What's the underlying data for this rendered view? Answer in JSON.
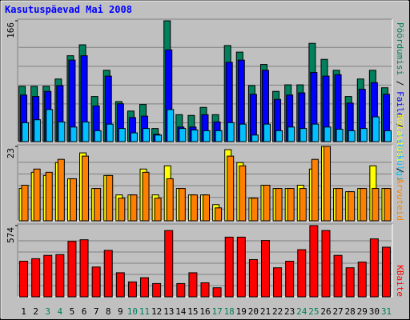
{
  "title": "Kasutuspäevad Mai 2008",
  "legend_separator": " / ",
  "categories": [
    "1",
    "2",
    "3",
    "4",
    "5",
    "6",
    "7",
    "8",
    "9",
    "10",
    "11",
    "12",
    "13",
    "14",
    "15",
    "16",
    "17",
    "18",
    "19",
    "20",
    "21",
    "22",
    "23",
    "24",
    "25",
    "26",
    "27",
    "28",
    "29",
    "30",
    "31"
  ],
  "category_colors": [
    "#000000",
    "#000000",
    "#00805c",
    "#00805c",
    "#000000",
    "#000000",
    "#000000",
    "#000000",
    "#000000",
    "#00805c",
    "#00805c",
    "#000000",
    "#000000",
    "#000000",
    "#000000",
    "#000000",
    "#00805c",
    "#00805c",
    "#000000",
    "#000000",
    "#000000",
    "#000000",
    "#000000",
    "#00805c",
    "#00805c",
    "#000000",
    "#000000",
    "#000000",
    "#000000",
    "#000000",
    "#00805c"
  ],
  "chart_data": [
    {
      "type": "bar",
      "ylim": [
        0,
        166
      ],
      "yticks": [
        166
      ],
      "series": [
        {
          "name": "Pöördumisi",
          "color": "#00805c",
          "values": [
            76,
            76,
            76,
            86,
            118,
            133,
            62,
            98,
            55,
            42,
            51,
            18,
            166,
            37,
            36,
            47,
            37,
            132,
            123,
            77,
            106,
            69,
            78,
            78,
            135,
            113,
            98,
            62,
            86,
            98,
            74
          ]
        },
        {
          "name": "Faile",
          "color": "#0000ff",
          "values": [
            64,
            62,
            69,
            77,
            112,
            118,
            49,
            90,
            52,
            33,
            35,
            10,
            126,
            20,
            20,
            37,
            27,
            109,
            112,
            65,
            98,
            58,
            64,
            67,
            95,
            90,
            92,
            53,
            72,
            81,
            65
          ]
        },
        {
          "name": "Lehekülgi",
          "color": "#00c0ff",
          "values": [
            26,
            30,
            44,
            27,
            20,
            27,
            15,
            24,
            18,
            12,
            18,
            9,
            44,
            18,
            16,
            15,
            15,
            26,
            24,
            9,
            24,
            15,
            20,
            18,
            24,
            20,
            17,
            15,
            18,
            34,
            15
          ]
        }
      ]
    },
    {
      "type": "bar",
      "ylim": [
        0,
        23
      ],
      "yticks": [
        23
      ],
      "series": [
        {
          "name": "Külastusi",
          "color": "#ffff00",
          "values": [
            10,
            15,
            14,
            18,
            13,
            21,
            10,
            14,
            8,
            8,
            16,
            8,
            17,
            10,
            8,
            8,
            5,
            22,
            18,
            7,
            11,
            10,
            10,
            11,
            16,
            23,
            10,
            9,
            10,
            17,
            10
          ]
        },
        {
          "name": "Arvuteid",
          "color": "#ff8000",
          "values": [
            11,
            16,
            15,
            19,
            13,
            20,
            10,
            14,
            7,
            8,
            15,
            7,
            13,
            10,
            8,
            8,
            4,
            20,
            17,
            7,
            11,
            10,
            10,
            10,
            19,
            23,
            10,
            9,
            10,
            10,
            10
          ]
        }
      ]
    },
    {
      "type": "bar",
      "ylim": [
        0,
        574
      ],
      "yticks": [
        574
      ],
      "series": [
        {
          "name": "KBaite",
          "color": "#ff0000",
          "values": [
            287,
            307,
            334,
            340,
            447,
            460,
            240,
            374,
            194,
            120,
            154,
            107,
            534,
            107,
            194,
            113,
            73,
            481,
            481,
            300,
            454,
            234,
            287,
            380,
            574,
            534,
            334,
            234,
            280,
            467,
            400
          ]
        }
      ]
    }
  ]
}
